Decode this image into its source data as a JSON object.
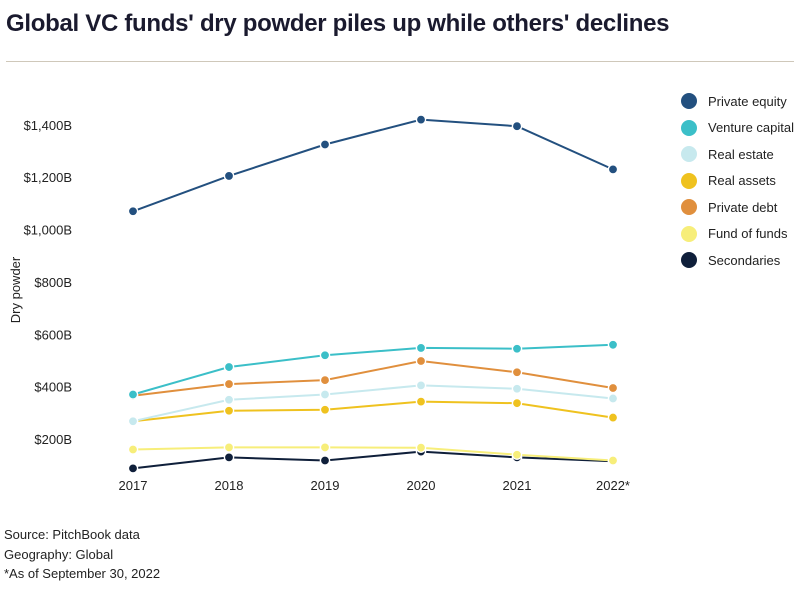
{
  "page_title": "Global VC funds' dry powder piles up while others' declines",
  "footer": {
    "source": "Source: PitchBook data",
    "geography": "Geography: Global",
    "note": "*As of September 30, 2022"
  },
  "chart_data": {
    "type": "line",
    "title": "Global VC funds' dry powder piles up while others' declines",
    "xlabel": "",
    "ylabel": "Dry powder",
    "categories": [
      "2017",
      "2018",
      "2019",
      "2020",
      "2021",
      "2022*"
    ],
    "ylim": [
      0,
      1500
    ],
    "y_ticks": [
      200,
      400,
      600,
      800,
      1000,
      1200,
      1400
    ],
    "y_tick_labels": [
      "$200B",
      "$400B",
      "$600B",
      "$800B",
      "$1,000B",
      "$1,200B",
      "$1,400B"
    ],
    "grid": false,
    "legend_position": "right",
    "series": [
      {
        "name": "Private equity",
        "color": "#23507f",
        "values": [
          1070,
          1205,
          1325,
          1420,
          1395,
          1230
        ]
      },
      {
        "name": "Venture capital",
        "color": "#3bbfc8",
        "values": [
          370,
          475,
          520,
          548,
          545,
          560
        ]
      },
      {
        "name": "Real estate",
        "color": "#c7e9ee",
        "values": [
          268,
          350,
          370,
          405,
          392,
          355
        ]
      },
      {
        "name": "Real assets",
        "color": "#efc21f",
        "values": [
          268,
          308,
          312,
          343,
          337,
          282
        ]
      },
      {
        "name": "Private debt",
        "color": "#e08f3d",
        "values": [
          365,
          410,
          425,
          498,
          455,
          395
        ]
      },
      {
        "name": "Fund of funds",
        "color": "#f7ee7a",
        "values": [
          160,
          168,
          168,
          167,
          140,
          118
        ]
      },
      {
        "name": "Secondaries",
        "color": "#0f1f3a",
        "values": [
          88,
          130,
          118,
          152,
          130,
          115
        ]
      }
    ]
  }
}
